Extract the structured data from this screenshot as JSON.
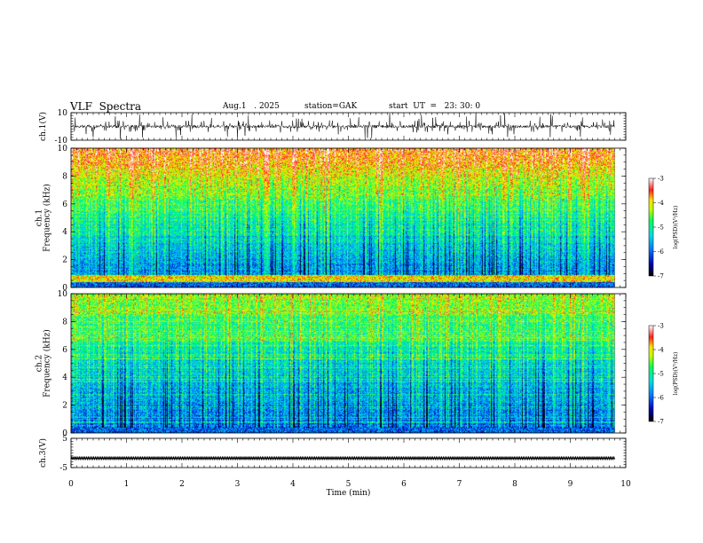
{
  "header": {
    "title": "VLF  Spectra",
    "date": "Aug.1   . 2025",
    "station": "station=GAK",
    "start": "start  UT  =   23: 30: 0"
  },
  "chart_data": [
    {
      "type": "line",
      "name": "ch1-waveform",
      "ylabel": "ch.1(V)",
      "ylim": [
        -10,
        10
      ],
      "yticks": [
        {
          "v": 10,
          "label": "10"
        },
        {
          "v": -10,
          "label": "-10"
        }
      ],
      "xlim": [
        0,
        10
      ],
      "data_x_max": 9.8,
      "description": "noisy voltage trace centered near 0 V with spikes"
    },
    {
      "type": "heatmap",
      "name": "ch1-spectrogram",
      "ylabel": "ch.1\nFrequency  (kHz)",
      "ylim": [
        0,
        10
      ],
      "yticks": [
        "0",
        "2",
        "4",
        "6",
        "8",
        "10"
      ],
      "xlim": [
        0,
        10
      ],
      "data_x_max": 9.8,
      "colorbar": {
        "label": "log(PSD)(V²/Hz)",
        "range": [
          -7,
          -3
        ],
        "ticks": [
          "-3",
          "-4",
          "-5",
          "-6",
          "-7"
        ]
      }
    },
    {
      "type": "heatmap",
      "name": "ch2-spectrogram",
      "ylabel": "ch.2\nFrequency  (kHz)",
      "ylim": [
        0,
        10
      ],
      "yticks": [
        "0",
        "2",
        "4",
        "6",
        "8",
        "10"
      ],
      "xlim": [
        0,
        10
      ],
      "data_x_max": 9.8,
      "colorbar": {
        "label": "log(PSD)(V²/Hz)",
        "range": [
          -7,
          -3
        ],
        "ticks": [
          "-3",
          "-4",
          "-5",
          "-6",
          "-7"
        ]
      }
    },
    {
      "type": "line",
      "name": "ch3-waveform",
      "ylabel": "ch.3(V)",
      "ylim": [
        -5,
        5
      ],
      "yticks": [
        {
          "v": 5,
          "label": "5"
        },
        {
          "v": -5,
          "label": "-5"
        }
      ],
      "xlim": [
        0,
        10
      ],
      "data_x_max": 9.8,
      "level": -1.8
    }
  ],
  "xaxis": {
    "label": "Time  (min)",
    "ticks": [
      "0",
      "1",
      "2",
      "3",
      "4",
      "5",
      "6",
      "7",
      "8",
      "9",
      "10"
    ]
  }
}
